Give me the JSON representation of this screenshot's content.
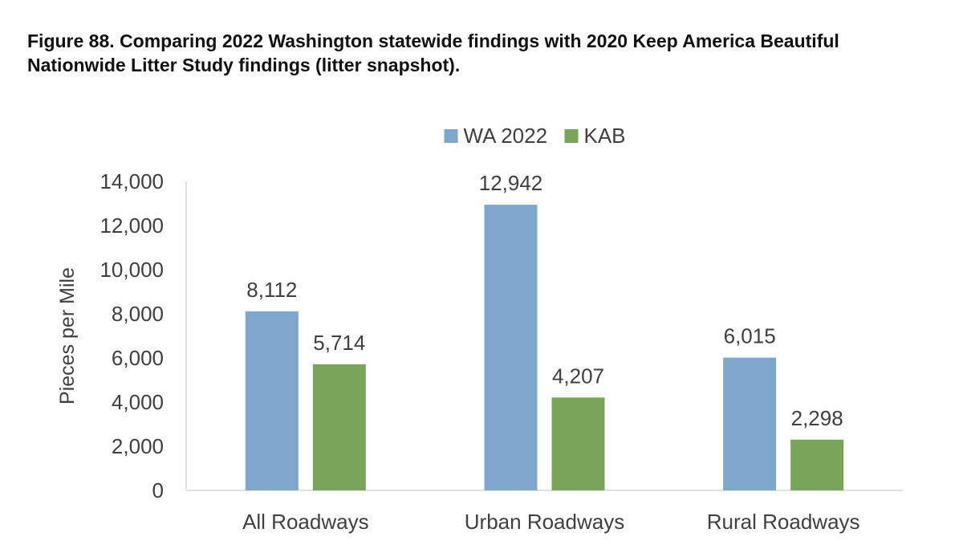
{
  "caption": {
    "line1": "Figure 88. Comparing 2022 Washington statewide findings with 2020 Keep America Beautiful",
    "line2": "Nationwide Litter Study findings (litter snapshot)."
  },
  "colors": {
    "wa": "#7fa7ce",
    "kab": "#79a45a",
    "axis": "#d9d9d9",
    "text": "#404040"
  },
  "chart_data": {
    "type": "bar",
    "title": "",
    "xlabel": "",
    "ylabel": "Pieces per Mile",
    "ylim": [
      0,
      14000
    ],
    "yticks": [
      0,
      2000,
      4000,
      6000,
      8000,
      10000,
      12000,
      14000
    ],
    "ytick_labels": [
      "0",
      "2,000",
      "4,000",
      "6,000",
      "8,000",
      "10,000",
      "12,000",
      "14,000"
    ],
    "grid": false,
    "legend_position": "top-center",
    "categories": [
      "All Roadways",
      "Urban Roadways",
      "Rural Roadways"
    ],
    "series": [
      {
        "name": "WA 2022",
        "values": [
          8112,
          12942,
          6015
        ],
        "labels": [
          "8,112",
          "12,942",
          "6,015"
        ]
      },
      {
        "name": "KAB",
        "values": [
          5714,
          4207,
          2298
        ],
        "labels": [
          "5,714",
          "4,207",
          "2,298"
        ]
      }
    ]
  }
}
